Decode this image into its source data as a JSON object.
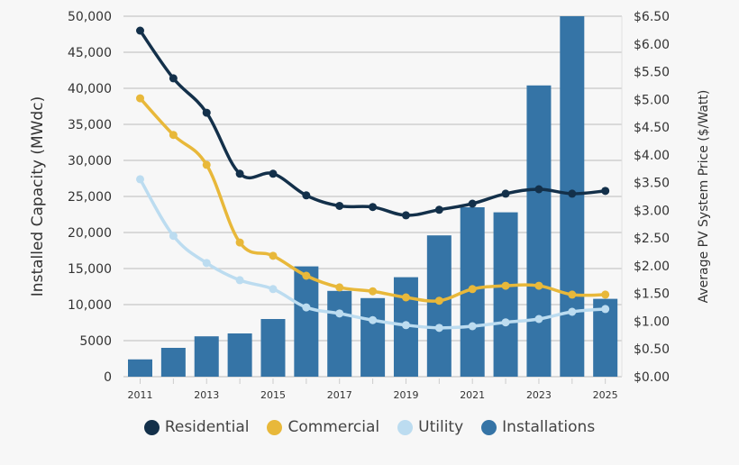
{
  "chart_data": {
    "type": "bar+line",
    "categories": [
      2011,
      2012,
      2013,
      2014,
      2015,
      2016,
      2017,
      2018,
      2019,
      2020,
      2021,
      2022,
      2023,
      2024,
      2025
    ],
    "x_tick_labels": [
      "2011",
      "2013",
      "2015",
      "2017",
      "2019",
      "2021",
      "2023",
      "2025"
    ],
    "ylabel_left": "Installed Capacity (MWdc)",
    "ylabel_right": "Average PV System Price ($/Watt)",
    "ylim_left": [
      0,
      50000
    ],
    "ylim_right": [
      0,
      6.5
    ],
    "y_ticks_left": [
      "0",
      "5000",
      "10,000",
      "15,000",
      "20,000",
      "25,000",
      "30,000",
      "35,000",
      "40,000",
      "45,000",
      "50,000"
    ],
    "y_ticks_right": [
      "$0.00",
      "$0.50",
      "$1.00",
      "$1.50",
      "$2.00",
      "$2.50",
      "$3.00",
      "$3.50",
      "$4.00",
      "$4.50",
      "$5.00",
      "$5.50",
      "$6.00",
      "$6.50"
    ],
    "grid": true,
    "legend_position": "bottom",
    "series": [
      {
        "name": "Installations",
        "type": "bar",
        "axis": "left",
        "color": "#3574a6",
        "values": [
          2400,
          4000,
          5600,
          6000,
          8000,
          15300,
          11900,
          10900,
          13800,
          19600,
          23500,
          22800,
          40400,
          50000,
          10800
        ]
      },
      {
        "name": "Residential",
        "type": "line",
        "axis": "right",
        "color": "#13304a",
        "values": [
          6.24,
          5.38,
          4.76,
          3.66,
          3.66,
          3.27,
          3.08,
          3.06,
          2.91,
          3.01,
          3.12,
          3.3,
          3.38,
          3.3,
          3.35
        ]
      },
      {
        "name": "Commercial",
        "type": "line",
        "axis": "right",
        "color": "#e8b83a",
        "values": [
          5.02,
          4.36,
          3.82,
          2.42,
          2.18,
          1.82,
          1.61,
          1.54,
          1.43,
          1.37,
          1.58,
          1.64,
          1.64,
          1.48,
          1.48
        ]
      },
      {
        "name": "Utility",
        "type": "line",
        "axis": "right",
        "color": "#bcdcf0",
        "values": [
          3.56,
          2.54,
          2.05,
          1.74,
          1.58,
          1.25,
          1.14,
          1.02,
          0.93,
          0.88,
          0.91,
          0.98,
          1.04,
          1.17,
          1.22
        ]
      }
    ],
    "legend_order": [
      "Residential",
      "Commercial",
      "Utility",
      "Installations"
    ]
  }
}
